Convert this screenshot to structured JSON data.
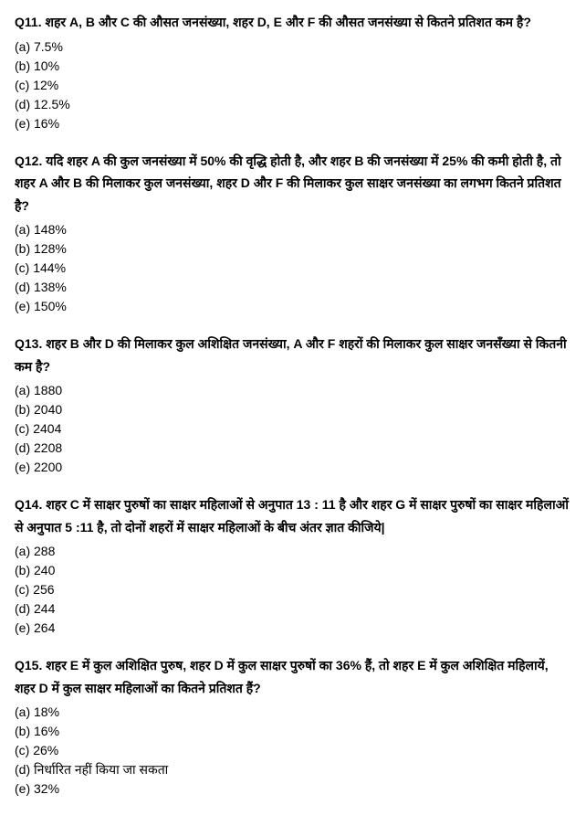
{
  "text_color": "#000000",
  "background_color": "#ffffff",
  "font_size": 14,
  "questions": [
    {
      "number": "Q11.",
      "text": "शहर A, B और C की औसत जनसंख्या, शहर D, E और F की औसत जनसंख्या से कितने प्रतिशत कम है?",
      "options": [
        "(a) 7.5%",
        "(b) 10%",
        "(c) 12%",
        "(d) 12.5%",
        "(e) 16%"
      ]
    },
    {
      "number": "Q12.",
      "text": " यदि शहर A की कुल जनसंख्या में 50% की वृद्धि होती है, और शहर B की जनसंख्या में 25% की कमी होती है, तो शहर A और B की मिलाकर कुल जनसंख्या, शहर  D और F की मिलाकर कुल साक्षर जनसंख्या का लगभग कितने प्रतिशत है?",
      "options": [
        "(a) 148%",
        "(b) 128%",
        "(c) 144%",
        "(d) 138%",
        "(e) 150%"
      ]
    },
    {
      "number": "Q13.",
      "text": " शहर B और D की मिलाकर कुल अशिक्षित जनसंख्या, A और F शहरों की मिलाकर कुल साक्षर जनसँख्या से कितनी कम है?",
      "options": [
        "(a) 1880",
        "(b) 2040",
        "(c) 2404",
        "(d) 2208",
        "(e)  2200"
      ]
    },
    {
      "number": "Q14.",
      "text": " शहर C में साक्षर पुरुषों का साक्षर महिलाओं से अनुपात 13 : 11 है और शहर G में साक्षर पुरुषों का साक्षर महिलाओं से अनुपात 5 :11 है, तो दोनों शहरों में साक्षर महिलाओं के बीच अंतर ज्ञात कीजिये|",
      "options": [
        "(a) 288",
        "(b) 240",
        "(c) 256",
        "(d) 244",
        "(e) 264"
      ]
    },
    {
      "number": "Q15.",
      "text": " शहर E में कुल अशिक्षित पुरुष, शहर D में कुल साक्षर पुरुषों का 36% हैं, तो शहर E में कुल अशिक्षित महिलायें, शहर D में कुल साक्षर महिलाओं का कितने प्रतिशत हैं?",
      "options": [
        "(a) 18%",
        "(b) 16%",
        "(c) 26%",
        "(d) निर्धारित नहीं किया जा सकता",
        "(e) 32%"
      ]
    }
  ]
}
